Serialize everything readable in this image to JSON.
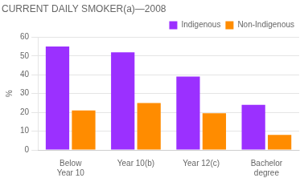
{
  "chart_data": {
    "type": "bar",
    "title": "CURRENT DAILY SMOKER(a)—2008",
    "ylabel": "%",
    "categories": [
      "Below\nYear 10",
      "Year 10(b)",
      "Year 12(c)",
      "Bachelor\ndegree"
    ],
    "series": [
      {
        "name": "Indigenous",
        "color": "#9B30FF",
        "values": [
          55,
          52,
          39,
          24
        ]
      },
      {
        "name": "Non-Indigenous",
        "color": "#FF8C00",
        "values": [
          21,
          25,
          19.5,
          8
        ]
      }
    ],
    "ylim": [
      0,
      60
    ],
    "yticks": [
      0,
      10,
      20,
      30,
      40,
      50,
      60
    ],
    "grid": true,
    "legend": "upper right"
  }
}
